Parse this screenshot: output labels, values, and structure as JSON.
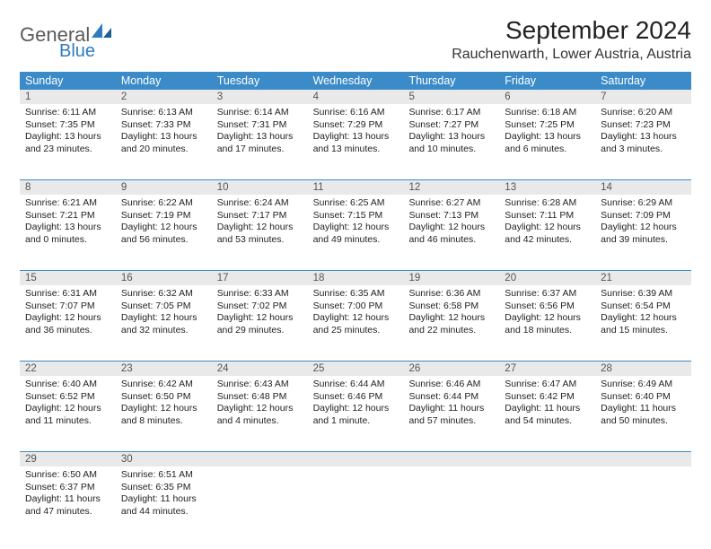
{
  "logo": {
    "text1": "General",
    "text2": "Blue"
  },
  "title": "September 2024",
  "location": "Rauchenwarth, Lower Austria, Austria",
  "colors": {
    "header_bg": "#3b8bc9",
    "header_text": "#ffffff",
    "daynum_bg": "#e9e9e9",
    "daynum_text": "#555555",
    "cell_text": "#222222",
    "border": "#3b8bc9",
    "logo_gray": "#5a5a5a",
    "logo_blue": "#2f7bbf"
  },
  "day_headers": [
    "Sunday",
    "Monday",
    "Tuesday",
    "Wednesday",
    "Thursday",
    "Friday",
    "Saturday"
  ],
  "weeks": [
    [
      {
        "n": "1",
        "sr": "Sunrise: 6:11 AM",
        "ss": "Sunset: 7:35 PM",
        "dl": "Daylight: 13 hours and 23 minutes."
      },
      {
        "n": "2",
        "sr": "Sunrise: 6:13 AM",
        "ss": "Sunset: 7:33 PM",
        "dl": "Daylight: 13 hours and 20 minutes."
      },
      {
        "n": "3",
        "sr": "Sunrise: 6:14 AM",
        "ss": "Sunset: 7:31 PM",
        "dl": "Daylight: 13 hours and 17 minutes."
      },
      {
        "n": "4",
        "sr": "Sunrise: 6:16 AM",
        "ss": "Sunset: 7:29 PM",
        "dl": "Daylight: 13 hours and 13 minutes."
      },
      {
        "n": "5",
        "sr": "Sunrise: 6:17 AM",
        "ss": "Sunset: 7:27 PM",
        "dl": "Daylight: 13 hours and 10 minutes."
      },
      {
        "n": "6",
        "sr": "Sunrise: 6:18 AM",
        "ss": "Sunset: 7:25 PM",
        "dl": "Daylight: 13 hours and 6 minutes."
      },
      {
        "n": "7",
        "sr": "Sunrise: 6:20 AM",
        "ss": "Sunset: 7:23 PM",
        "dl": "Daylight: 13 hours and 3 minutes."
      }
    ],
    [
      {
        "n": "8",
        "sr": "Sunrise: 6:21 AM",
        "ss": "Sunset: 7:21 PM",
        "dl": "Daylight: 13 hours and 0 minutes."
      },
      {
        "n": "9",
        "sr": "Sunrise: 6:22 AM",
        "ss": "Sunset: 7:19 PM",
        "dl": "Daylight: 12 hours and 56 minutes."
      },
      {
        "n": "10",
        "sr": "Sunrise: 6:24 AM",
        "ss": "Sunset: 7:17 PM",
        "dl": "Daylight: 12 hours and 53 minutes."
      },
      {
        "n": "11",
        "sr": "Sunrise: 6:25 AM",
        "ss": "Sunset: 7:15 PM",
        "dl": "Daylight: 12 hours and 49 minutes."
      },
      {
        "n": "12",
        "sr": "Sunrise: 6:27 AM",
        "ss": "Sunset: 7:13 PM",
        "dl": "Daylight: 12 hours and 46 minutes."
      },
      {
        "n": "13",
        "sr": "Sunrise: 6:28 AM",
        "ss": "Sunset: 7:11 PM",
        "dl": "Daylight: 12 hours and 42 minutes."
      },
      {
        "n": "14",
        "sr": "Sunrise: 6:29 AM",
        "ss": "Sunset: 7:09 PM",
        "dl": "Daylight: 12 hours and 39 minutes."
      }
    ],
    [
      {
        "n": "15",
        "sr": "Sunrise: 6:31 AM",
        "ss": "Sunset: 7:07 PM",
        "dl": "Daylight: 12 hours and 36 minutes."
      },
      {
        "n": "16",
        "sr": "Sunrise: 6:32 AM",
        "ss": "Sunset: 7:05 PM",
        "dl": "Daylight: 12 hours and 32 minutes."
      },
      {
        "n": "17",
        "sr": "Sunrise: 6:33 AM",
        "ss": "Sunset: 7:02 PM",
        "dl": "Daylight: 12 hours and 29 minutes."
      },
      {
        "n": "18",
        "sr": "Sunrise: 6:35 AM",
        "ss": "Sunset: 7:00 PM",
        "dl": "Daylight: 12 hours and 25 minutes."
      },
      {
        "n": "19",
        "sr": "Sunrise: 6:36 AM",
        "ss": "Sunset: 6:58 PM",
        "dl": "Daylight: 12 hours and 22 minutes."
      },
      {
        "n": "20",
        "sr": "Sunrise: 6:37 AM",
        "ss": "Sunset: 6:56 PM",
        "dl": "Daylight: 12 hours and 18 minutes."
      },
      {
        "n": "21",
        "sr": "Sunrise: 6:39 AM",
        "ss": "Sunset: 6:54 PM",
        "dl": "Daylight: 12 hours and 15 minutes."
      }
    ],
    [
      {
        "n": "22",
        "sr": "Sunrise: 6:40 AM",
        "ss": "Sunset: 6:52 PM",
        "dl": "Daylight: 12 hours and 11 minutes."
      },
      {
        "n": "23",
        "sr": "Sunrise: 6:42 AM",
        "ss": "Sunset: 6:50 PM",
        "dl": "Daylight: 12 hours and 8 minutes."
      },
      {
        "n": "24",
        "sr": "Sunrise: 6:43 AM",
        "ss": "Sunset: 6:48 PM",
        "dl": "Daylight: 12 hours and 4 minutes."
      },
      {
        "n": "25",
        "sr": "Sunrise: 6:44 AM",
        "ss": "Sunset: 6:46 PM",
        "dl": "Daylight: 12 hours and 1 minute."
      },
      {
        "n": "26",
        "sr": "Sunrise: 6:46 AM",
        "ss": "Sunset: 6:44 PM",
        "dl": "Daylight: 11 hours and 57 minutes."
      },
      {
        "n": "27",
        "sr": "Sunrise: 6:47 AM",
        "ss": "Sunset: 6:42 PM",
        "dl": "Daylight: 11 hours and 54 minutes."
      },
      {
        "n": "28",
        "sr": "Sunrise: 6:49 AM",
        "ss": "Sunset: 6:40 PM",
        "dl": "Daylight: 11 hours and 50 minutes."
      }
    ],
    [
      {
        "n": "29",
        "sr": "Sunrise: 6:50 AM",
        "ss": "Sunset: 6:37 PM",
        "dl": "Daylight: 11 hours and 47 minutes."
      },
      {
        "n": "30",
        "sr": "Sunrise: 6:51 AM",
        "ss": "Sunset: 6:35 PM",
        "dl": "Daylight: 11 hours and 44 minutes."
      },
      {
        "n": "",
        "sr": "",
        "ss": "",
        "dl": ""
      },
      {
        "n": "",
        "sr": "",
        "ss": "",
        "dl": ""
      },
      {
        "n": "",
        "sr": "",
        "ss": "",
        "dl": ""
      },
      {
        "n": "",
        "sr": "",
        "ss": "",
        "dl": ""
      },
      {
        "n": "",
        "sr": "",
        "ss": "",
        "dl": ""
      }
    ]
  ]
}
